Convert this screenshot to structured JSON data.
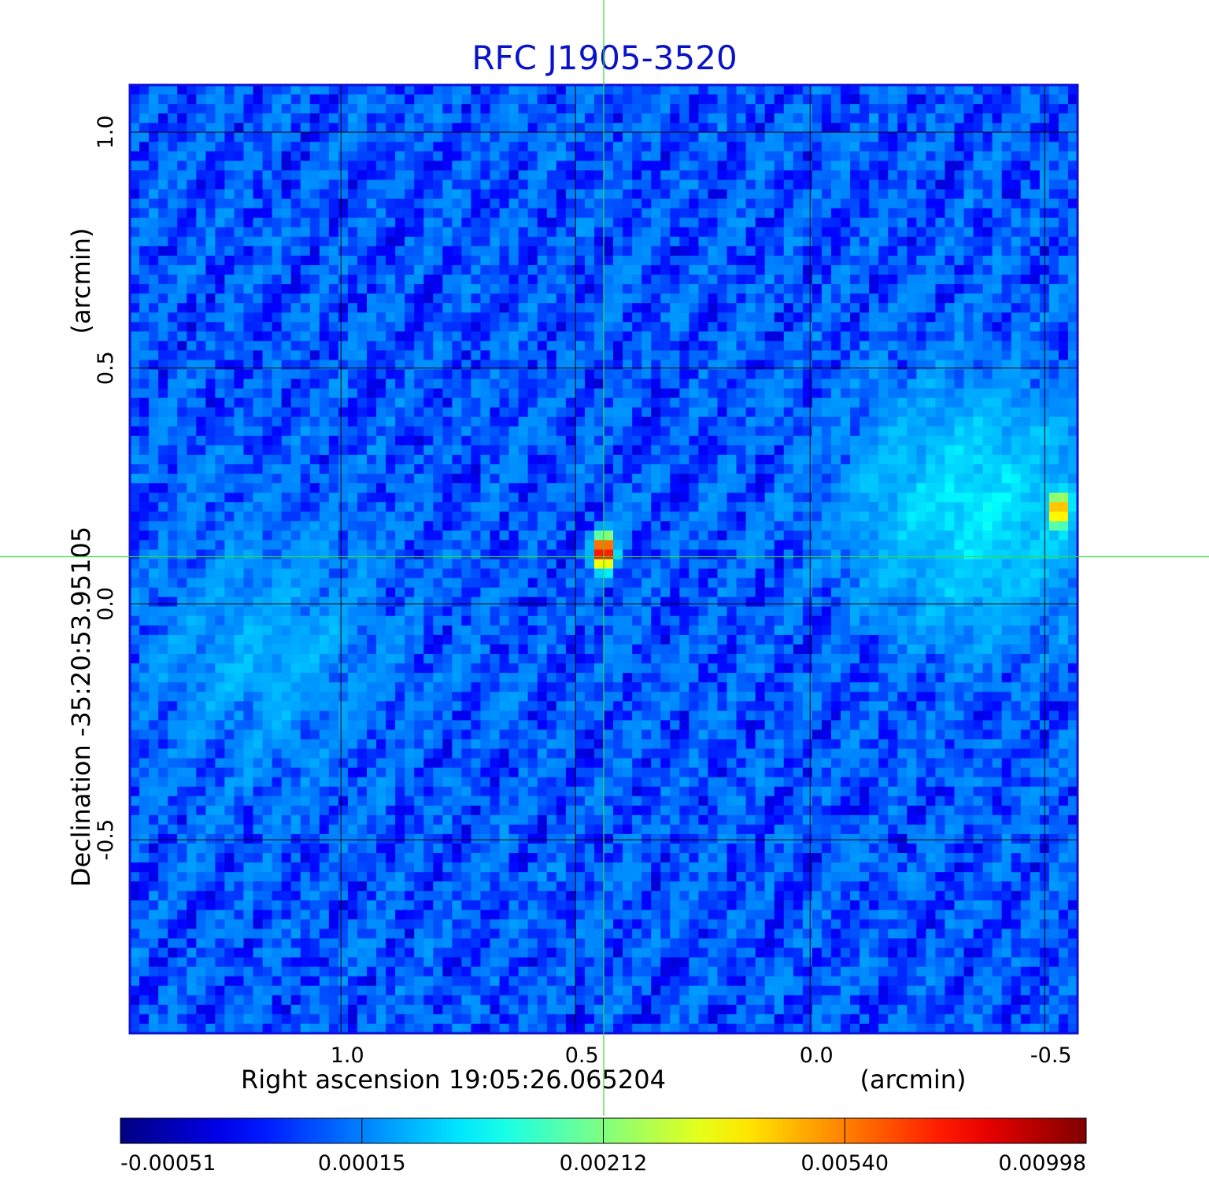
{
  "title": "RFC J1905-3520",
  "chart_data": {
    "type": "heatmap",
    "title": "RFC J1905-3520",
    "xlabel_parts": [
      "Right ascension",
      "19:05:26.065204",
      "(arcmin)"
    ],
    "ylabel_parts": [
      "Declination",
      "-35:20:53.95105",
      "(arcmin)"
    ],
    "x_ticks": [
      1.0,
      0.5,
      0.0,
      -0.5
    ],
    "x_tick_labels": [
      "1.0",
      "0.5",
      "0.0",
      "-0.5"
    ],
    "y_ticks": [
      -0.5,
      0.0,
      0.5,
      1.0
    ],
    "y_tick_labels": [
      "-0.5",
      "0.0",
      "0.5",
      "1.0"
    ],
    "xlim": [
      1.45,
      -0.57
    ],
    "ylim": [
      -0.91,
      1.1
    ],
    "grid": true,
    "crosshair": {
      "x": 0.44,
      "y": 0.1
    },
    "sources": [
      {
        "x": 0.44,
        "y": 0.11,
        "peak": 0.00998
      },
      {
        "x": -0.53,
        "y": 0.2,
        "peak": 0.0054
      }
    ],
    "background_level": 5e-05,
    "extended_emission": [
      {
        "x": -0.35,
        "y": 0.2,
        "level": 0.0009
      },
      {
        "x": 1.15,
        "y": -0.1,
        "level": 0.0004
      }
    ],
    "colorbar": {
      "labels": [
        "-0.00051",
        "0.00015",
        "0.00212",
        "0.00540",
        "0.00998"
      ],
      "colormap": "jet"
    }
  }
}
